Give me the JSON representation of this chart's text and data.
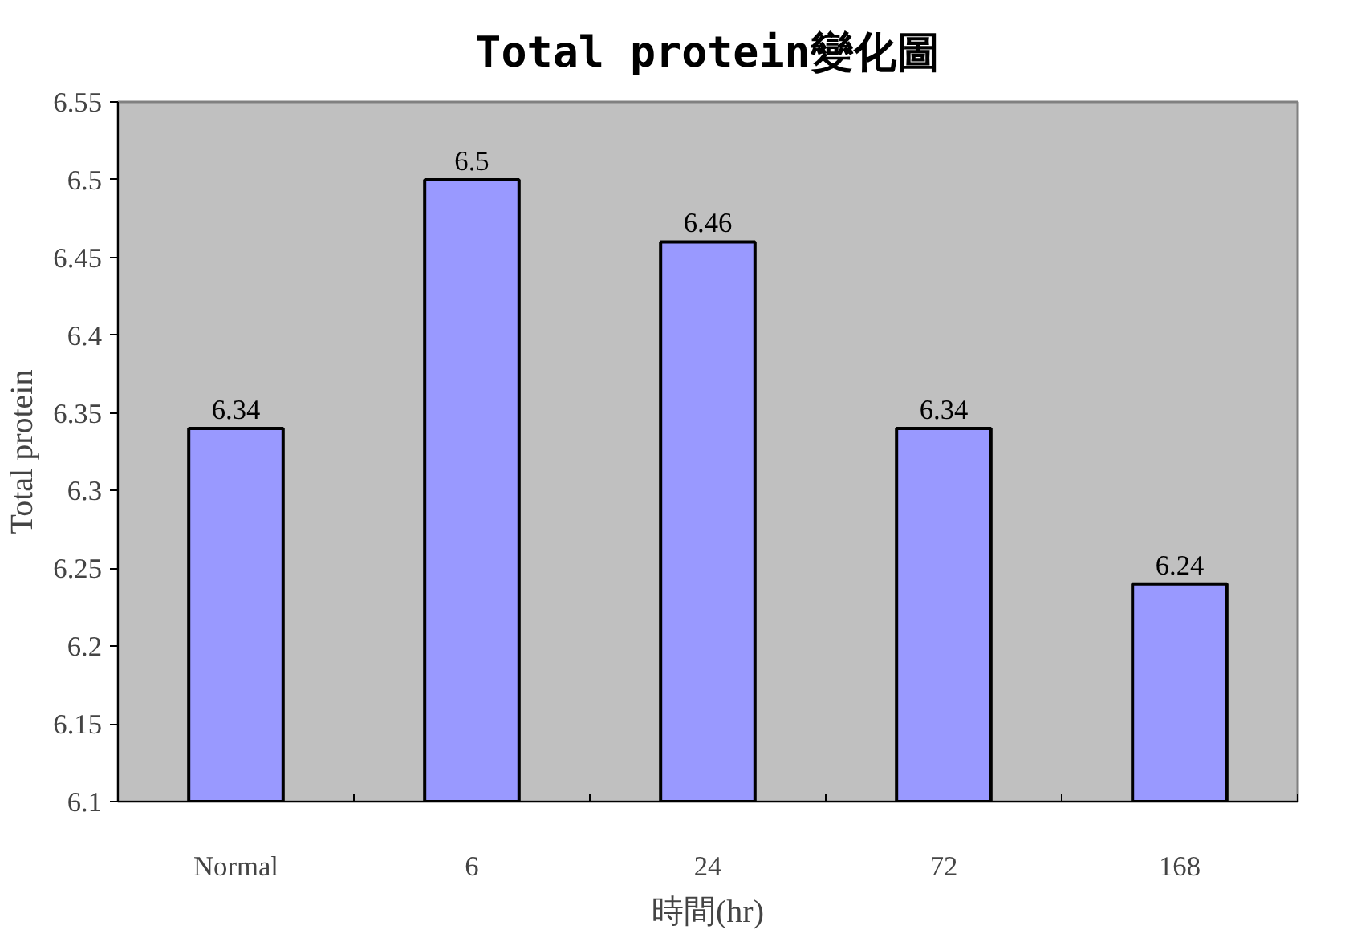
{
  "chart_data": {
    "type": "bar",
    "title": "Total protein變化圖",
    "xlabel": "時間(hr)",
    "ylabel": "Total protein",
    "categories": [
      "Normal",
      "6",
      "24",
      "72",
      "168"
    ],
    "values": [
      6.34,
      6.5,
      6.46,
      6.34,
      6.24
    ],
    "color": "#9999ff",
    "ylim": [
      6.1,
      6.55
    ],
    "yticks": [
      6.1,
      6.15,
      6.2,
      6.25,
      6.3,
      6.35,
      6.4,
      6.45,
      6.5,
      6.55
    ],
    "data_labels": true,
    "grid": false
  }
}
